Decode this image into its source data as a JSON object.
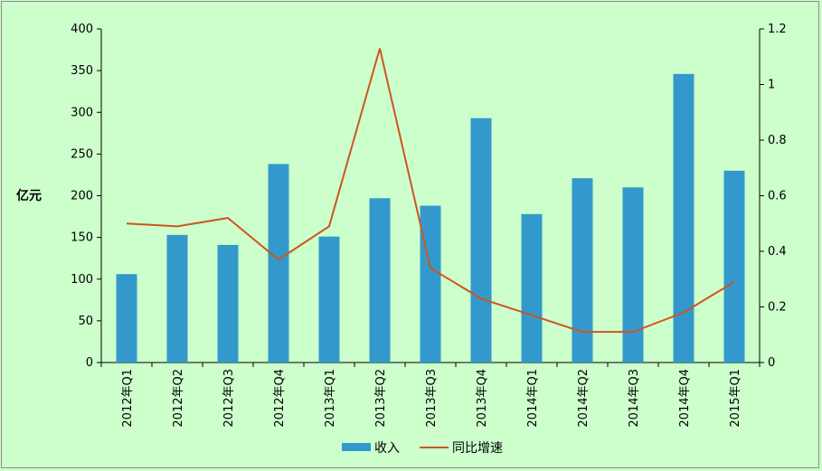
{
  "chart_data": {
    "type": "bar+line",
    "categories": [
      "2012年Q1",
      "2012年Q2",
      "2012年Q3",
      "2012年Q4",
      "2013年Q1",
      "2013年Q2",
      "2013年Q3",
      "2013年Q4",
      "2014年Q1",
      "2014年Q2",
      "2014年Q3",
      "2014年Q4",
      "2015年Q1"
    ],
    "series": [
      {
        "name": "收入",
        "type": "bar",
        "axis": "left",
        "color": "#3399cc",
        "values": [
          106,
          153,
          141,
          238,
          151,
          197,
          188,
          293,
          178,
          221,
          210,
          346,
          230
        ]
      },
      {
        "name": "同比增速",
        "type": "line",
        "axis": "right",
        "color": "#cc5522",
        "values": [
          0.5,
          0.49,
          0.52,
          0.37,
          0.49,
          1.13,
          0.34,
          0.23,
          0.17,
          0.11,
          0.11,
          0.18,
          0.29
        ]
      }
    ],
    "ylabel": "亿元",
    "ylim": [
      0,
      400
    ],
    "yticks": [
      "0",
      "50",
      "100",
      "150",
      "200",
      "250",
      "300",
      "350",
      "400"
    ],
    "y2lim": [
      0,
      1.2
    ],
    "y2ticks": [
      "0",
      "0.2",
      "0.4",
      "0.6",
      "0.8",
      "1",
      "1.2"
    ],
    "grid": false,
    "legend_position": "bottom"
  }
}
